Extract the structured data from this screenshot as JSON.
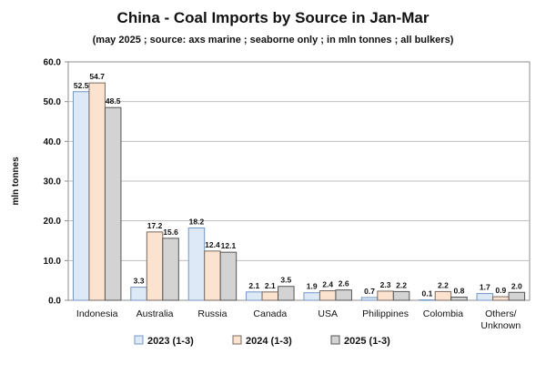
{
  "chart_data": {
    "type": "bar",
    "title": "China - Coal Imports by Source in Jan-Mar",
    "subtitle": "(may 2025 ; source: axs marine ; seaborne only ; in mln tonnes ; all bulkers)",
    "ylabel": "mln tonnes",
    "xlabel": "",
    "ylim": [
      0,
      60
    ],
    "yticks": [
      "0.0",
      "10.0",
      "20.0",
      "30.0",
      "40.0",
      "50.0",
      "60.0"
    ],
    "grid": true,
    "legend_position": "bottom",
    "categories": [
      "Indonesia",
      "Australia",
      "Russia",
      "Canada",
      "USA",
      "Philippines",
      "Colombia",
      "Others/\nUnknown"
    ],
    "series": [
      {
        "name": "2023 (1-3)",
        "color": "#dde9f7",
        "stroke": "#7396c4",
        "values": [
          52.5,
          3.3,
          18.2,
          2.1,
          1.9,
          0.7,
          0.1,
          1.7
        ],
        "labels": [
          "52.5",
          "3.3",
          "18.2",
          "2.1",
          "1.9",
          "0.7",
          "0.1",
          "1.7"
        ]
      },
      {
        "name": "2024 (1-3)",
        "color": "#fbe3d0",
        "stroke": "#7a6a60",
        "values": [
          54.7,
          17.2,
          12.4,
          2.1,
          2.4,
          2.3,
          2.2,
          0.9
        ],
        "labels": [
          "54.7",
          "17.2",
          "12.4",
          "2.1",
          "2.4",
          "2.3",
          "2.2",
          "0.9"
        ]
      },
      {
        "name": "2025 (1-3)",
        "color": "#d3d3d3",
        "stroke": "#555555",
        "values": [
          48.5,
          15.6,
          12.1,
          3.5,
          2.6,
          2.2,
          0.8,
          2.0
        ],
        "labels": [
          "48.5",
          "15.6",
          "12.1",
          "3.5",
          "2.6",
          "2.2",
          "0.8",
          "2.0"
        ]
      }
    ]
  }
}
